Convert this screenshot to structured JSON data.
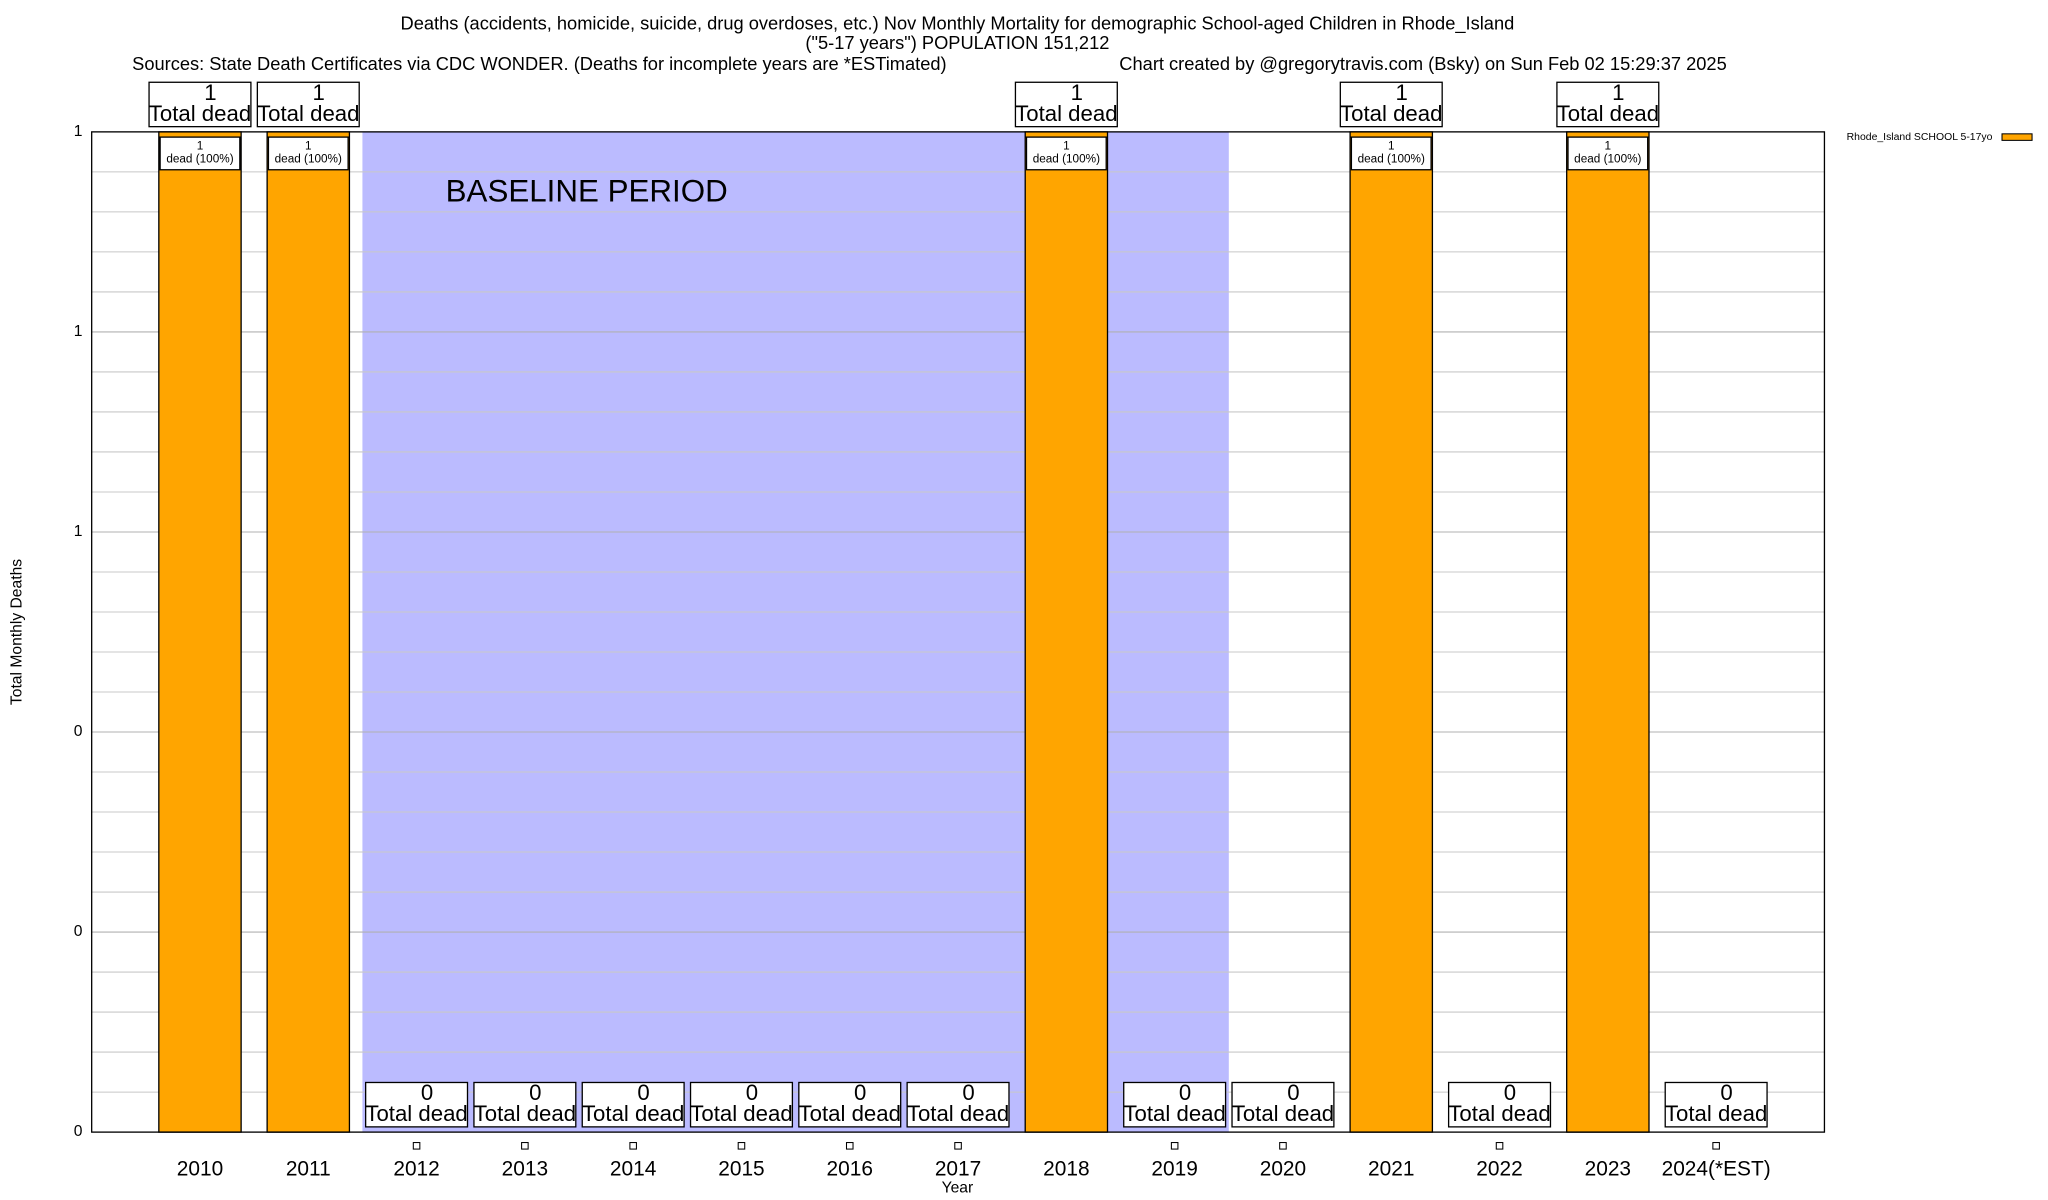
{
  "chart_data": {
    "type": "bar",
    "title": "Deaths (accidents, homicide, suicide, drug overdoses, etc.) Nov Monthly Mortality for demographic School-aged Children in Rhode_Island",
    "subtitle": "(\"5-17 years\") POPULATION 151,212",
    "sources": "Sources: State Death Certificates via CDC WONDER. (Deaths for incomplete years are *ESTimated)",
    "credit": "Chart created by @gregorytravis.com (Bsky) on Sun Feb 02 15:29:37 2025",
    "x_label": "Year",
    "y_label": "Total Monthly Deaths",
    "categories": [
      "2010",
      "2011",
      "2012",
      "2013",
      "2014",
      "2015",
      "2016",
      "2017",
      "2018",
      "2019",
      "2020",
      "2021",
      "2022",
      "2023",
      "2024(*EST)"
    ],
    "series": [
      {
        "name": "Rhode_Island SCHOOL 5-17yo",
        "color": "#ffa500",
        "values": [
          1,
          1,
          0,
          0,
          0,
          0,
          0,
          0,
          1,
          0,
          0,
          1,
          0,
          1,
          0
        ],
        "segment_labels": [
          "dead (100%)",
          "dead (100%)",
          null,
          null,
          null,
          null,
          null,
          null,
          "dead (100%)",
          null,
          null,
          "dead (100%)",
          null,
          "dead (100%)",
          null
        ]
      }
    ],
    "total_label": "Total dead",
    "baseline": {
      "label": "BASELINE PERIOD",
      "start": "2012",
      "end": "2019",
      "color": "#bbbbff"
    },
    "ylim": [
      0,
      1
    ],
    "yticks": [
      0,
      {
        "value": 0.2,
        "label": "0"
      },
      {
        "value": 0.4,
        "label": "0"
      },
      {
        "value": 0.6,
        "label": "1"
      },
      {
        "value": 0.8,
        "label": "1"
      },
      {
        "value": 1,
        "label": "1"
      }
    ],
    "minor_yticks": [
      0.04,
      0.08,
      0.12,
      0.16,
      0.24,
      0.28,
      0.32,
      0.36,
      0.44,
      0.48,
      0.52,
      0.56,
      0.64,
      0.68,
      0.72,
      0.76,
      0.84,
      0.88,
      0.92,
      0.96
    ],
    "grid": true,
    "legend": "top-right"
  }
}
